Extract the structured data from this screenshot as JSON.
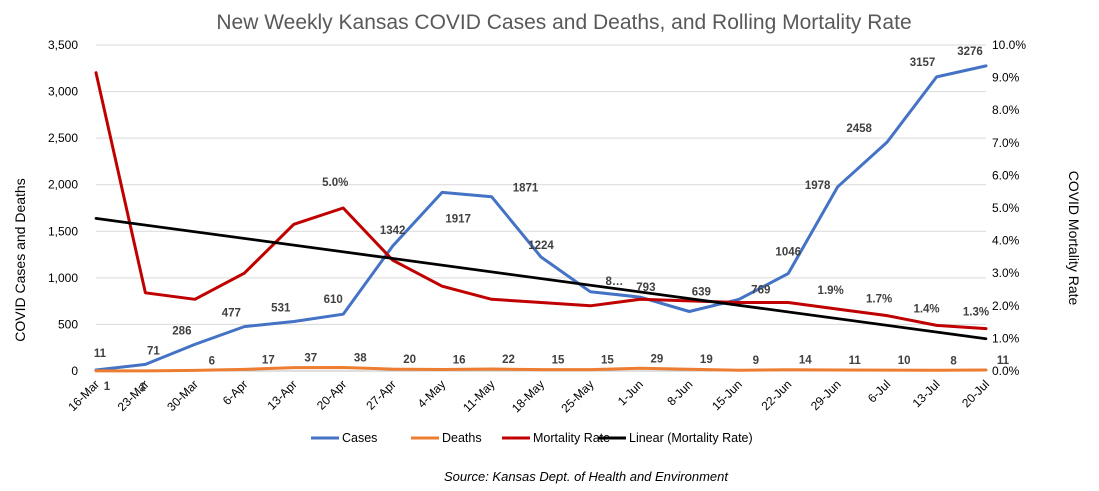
{
  "chart_data": {
    "type": "line",
    "title": "New Weekly Kansas COVID Cases and Deaths, and Rolling Mortality Rate",
    "source": "Source: Kansas Dept. of Health and Environment",
    "categories": [
      "16-Mar",
      "23-Mar",
      "30-Mar",
      "6-Apr",
      "13-Apr",
      "20-Apr",
      "27-Apr",
      "4-May",
      "11-May",
      "18-May",
      "25-May",
      "1-Jun",
      "8-Jun",
      "15-Jun",
      "22-Jun",
      "29-Jun",
      "6-Jul",
      "13-Jul",
      "20-Jul"
    ],
    "y_left": {
      "label": "COVID Cases  and Deaths",
      "min": 0,
      "max": 3500,
      "step": 500,
      "tick_labels": [
        "0",
        "500",
        "1,000",
        "1,500",
        "2,000",
        "2,500",
        "3,000",
        "3,500"
      ]
    },
    "y_right": {
      "label": "COVID Mortality Rate",
      "min": 0,
      "max": 0.1,
      "step": 0.01,
      "tick_labels": [
        "0.0%",
        "1.0%",
        "2.0%",
        "3.0%",
        "4.0%",
        "5.0%",
        "6.0%",
        "7.0%",
        "8.0%",
        "9.0%",
        "10.0%"
      ]
    },
    "grid": true,
    "legend_position": "bottom",
    "series": [
      {
        "name": "Cases",
        "axis": "left",
        "color": "#4472C4",
        "values": [
          11,
          71,
          286,
          477,
          531,
          610,
          1342,
          1917,
          1871,
          1224,
          850,
          793,
          639,
          769,
          1046,
          1978,
          2458,
          3157,
          3276
        ],
        "labels": [
          "11",
          "71",
          "286",
          "477",
          "531",
          "610",
          "1342",
          "1917",
          "1871",
          "1224",
          "8…",
          "793",
          "639",
          "769",
          "1046",
          "1978",
          "2458",
          "3157",
          "3276"
        ]
      },
      {
        "name": "Deaths",
        "axis": "left",
        "color": "#ED7D31",
        "values": [
          1,
          1,
          6,
          17,
          37,
          38,
          20,
          16,
          22,
          15,
          15,
          29,
          19,
          9,
          14,
          11,
          10,
          8,
          11
        ],
        "labels": [
          "1",
          "1",
          "6",
          "17",
          "37",
          "38",
          "20",
          "16",
          "22",
          "15",
          "15",
          "29",
          "19",
          "9",
          "14",
          "11",
          "10",
          "8",
          "11"
        ]
      },
      {
        "name": "Mortality Rate",
        "axis": "right",
        "color": "#C00000",
        "values": [
          0.0915,
          0.024,
          0.022,
          0.03,
          0.045,
          0.05,
          0.034,
          0.026,
          0.022,
          0.021,
          0.02,
          0.022,
          0.0215,
          0.021,
          0.021,
          0.019,
          0.017,
          0.014,
          0.013
        ],
        "labels": [
          "",
          "",
          "",
          "",
          "",
          "5.0%",
          "",
          "",
          "",
          "",
          "",
          "",
          "",
          "",
          "",
          "1.9%",
          "1.7%",
          "1.4%",
          "1.3%"
        ]
      },
      {
        "name": "Linear (Mortality Rate)",
        "axis": "right",
        "color": "#000000",
        "values": [
          0.0468,
          0.0448,
          0.0428,
          0.0408,
          0.0388,
          0.0368,
          0.0348,
          0.0328,
          0.0308,
          0.0288,
          0.0268,
          0.0248,
          0.0228,
          0.0208,
          0.0188,
          0.0168,
          0.0148,
          0.0128,
          0.0099
        ]
      }
    ]
  }
}
